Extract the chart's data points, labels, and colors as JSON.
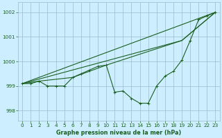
{
  "background_color": "#cceeff",
  "grid_color": "#99bbcc",
  "line_color": "#1a5e20",
  "xlabel": "Graphe pression niveau de la mer (hPa)",
  "ylim": [
    997.6,
    1002.4
  ],
  "xlim": [
    -0.5,
    23.5
  ],
  "yticks": [
    998,
    999,
    1000,
    1001,
    1002
  ],
  "xticks": [
    0,
    1,
    2,
    3,
    4,
    5,
    6,
    7,
    8,
    9,
    10,
    11,
    12,
    13,
    14,
    15,
    16,
    17,
    18,
    19,
    20,
    21,
    22,
    23
  ],
  "series1_x": [
    0,
    1,
    2,
    3,
    4,
    5,
    6,
    7,
    8,
    9,
    10,
    11,
    12,
    13,
    14,
    15,
    16,
    17,
    18,
    19,
    20,
    21,
    22,
    23
  ],
  "series1_y": [
    999.1,
    999.1,
    999.2,
    999.0,
    999.0,
    999.0,
    999.35,
    999.5,
    999.65,
    999.8,
    999.85,
    998.75,
    998.8,
    998.5,
    998.3,
    998.3,
    999.0,
    999.4,
    999.6,
    1000.05,
    1000.85,
    1001.7,
    1001.85,
    1002.0
  ],
  "series2_x": [
    0,
    23
  ],
  "series2_y": [
    999.1,
    1002.0
  ],
  "series3_x": [
    0,
    19,
    23
  ],
  "series3_y": [
    999.1,
    1000.85,
    1002.0
  ],
  "series4_x": [
    0,
    2,
    6,
    10,
    19,
    23
  ],
  "series4_y": [
    999.1,
    999.2,
    999.35,
    999.85,
    1000.85,
    1002.0
  ]
}
